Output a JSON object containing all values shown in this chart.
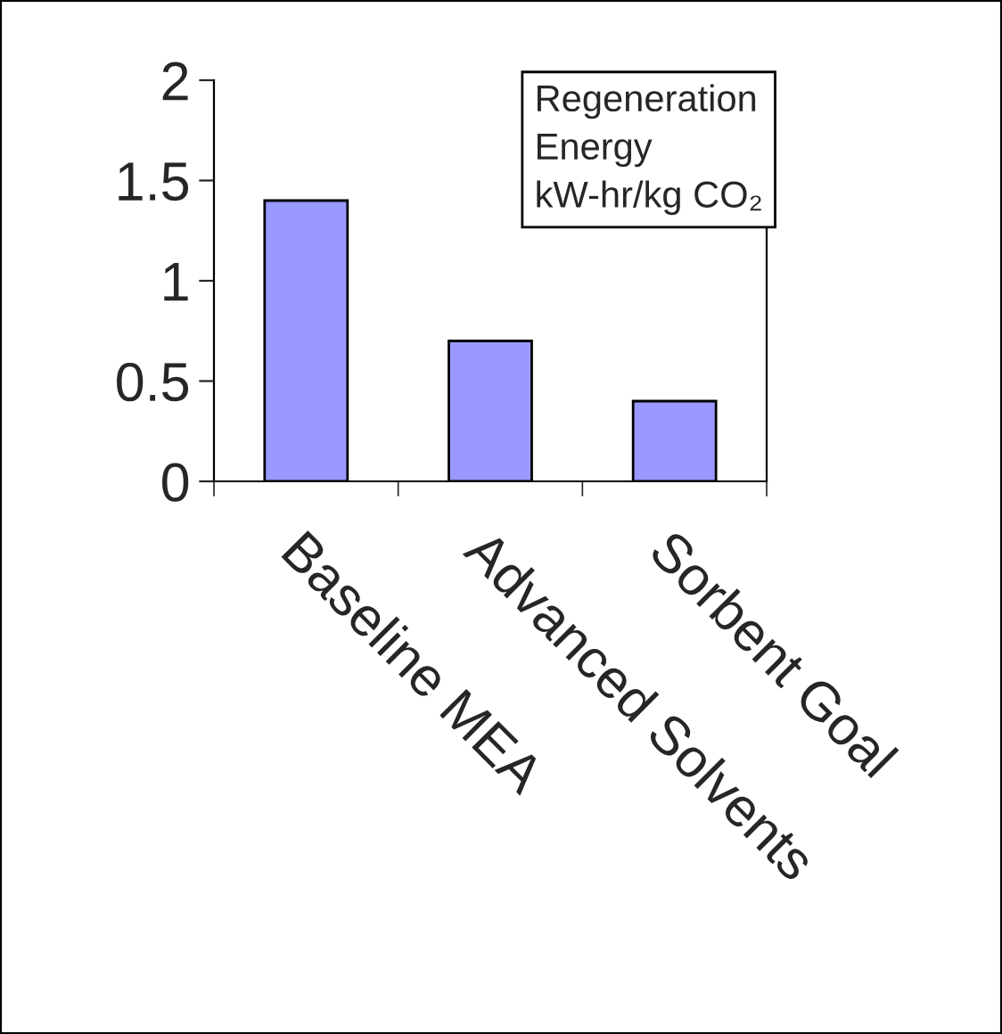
{
  "chart_data": {
    "type": "bar",
    "title": "Regeneration\nEnergy\nkW-hr/kg CO₂",
    "categories": [
      "Baseline MEA",
      "Advanced Solvents",
      "Sorbent Goal"
    ],
    "values": [
      1.4,
      0.7,
      0.4
    ],
    "color": "#9999ff",
    "ylim": [
      0,
      2
    ],
    "yticks": [
      0,
      0.5,
      1,
      1.5,
      2
    ],
    "grid": false,
    "legend": false
  }
}
